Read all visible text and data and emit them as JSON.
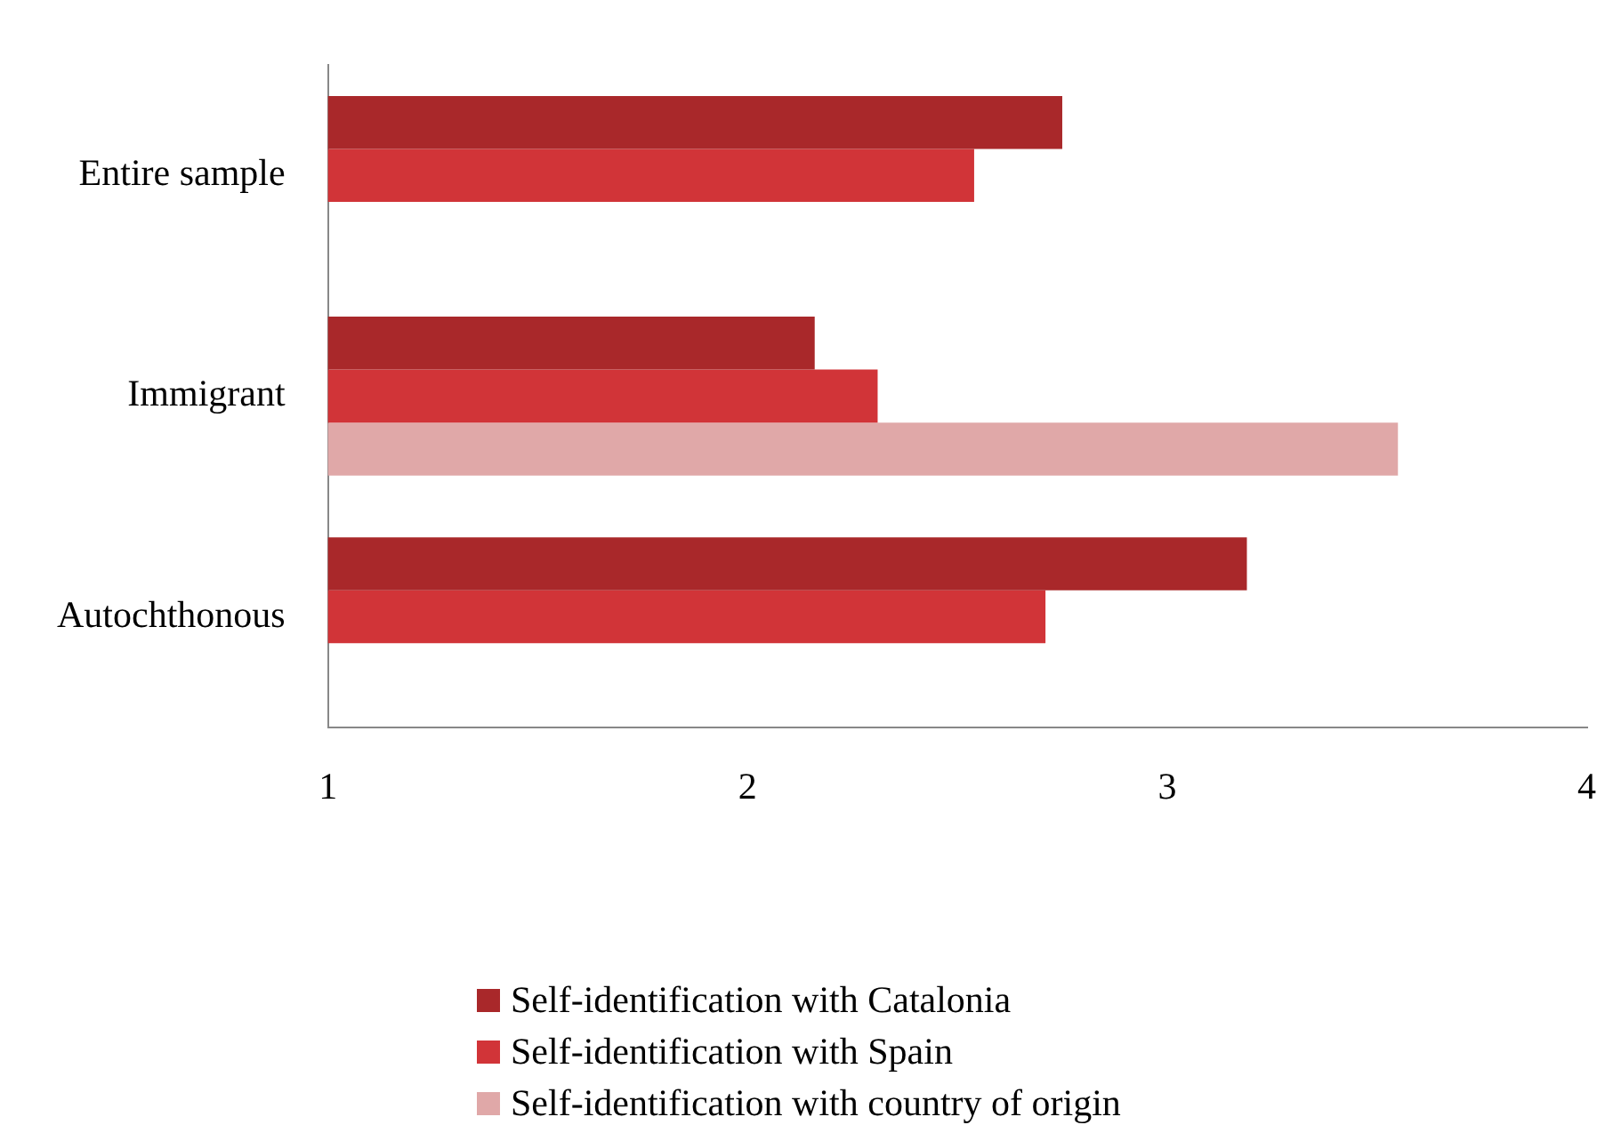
{
  "chart_data": {
    "type": "bar",
    "orientation": "horizontal",
    "categories": [
      "Entire sample",
      "Immigrant",
      "Autochthonous"
    ],
    "series": [
      {
        "name": "Self-identification with Catalonia",
        "color": "#a9282a",
        "values": [
          2.75,
          2.16,
          3.19
        ]
      },
      {
        "name": "Self-identification with Spain",
        "color": "#d13438",
        "values": [
          2.54,
          2.31,
          2.71
        ]
      },
      {
        "name": "Self-identification with country of origin",
        "color": "#e0a8a8",
        "values": [
          null,
          3.55,
          null
        ]
      }
    ],
    "xlim": [
      1,
      4
    ],
    "xticks": [
      1,
      2,
      3,
      4
    ],
    "grid": false,
    "legend": "bottom"
  }
}
